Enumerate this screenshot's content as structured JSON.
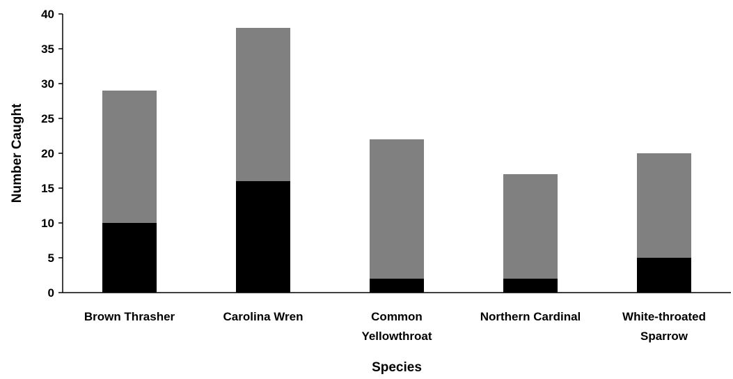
{
  "chart_data": {
    "type": "bar",
    "stacked": true,
    "title": "",
    "xlabel": "Species",
    "ylabel": "Number Caught",
    "ylim": [
      0,
      40
    ],
    "yticks": [
      0,
      5,
      10,
      15,
      20,
      25,
      30,
      35,
      40
    ],
    "categories": [
      [
        "Brown Thrasher"
      ],
      [
        "Carolina Wren"
      ],
      [
        "Common",
        "Yellowthroat"
      ],
      [
        "Northern Cardinal"
      ],
      [
        "White-throated",
        "Sparrow"
      ]
    ],
    "series": [
      {
        "values": [
          10,
          16,
          2,
          2,
          5
        ],
        "color": "#000000"
      },
      {
        "values": [
          19,
          22,
          20,
          15,
          15
        ],
        "color": "#808080"
      }
    ],
    "grid": false,
    "legend": "none"
  }
}
